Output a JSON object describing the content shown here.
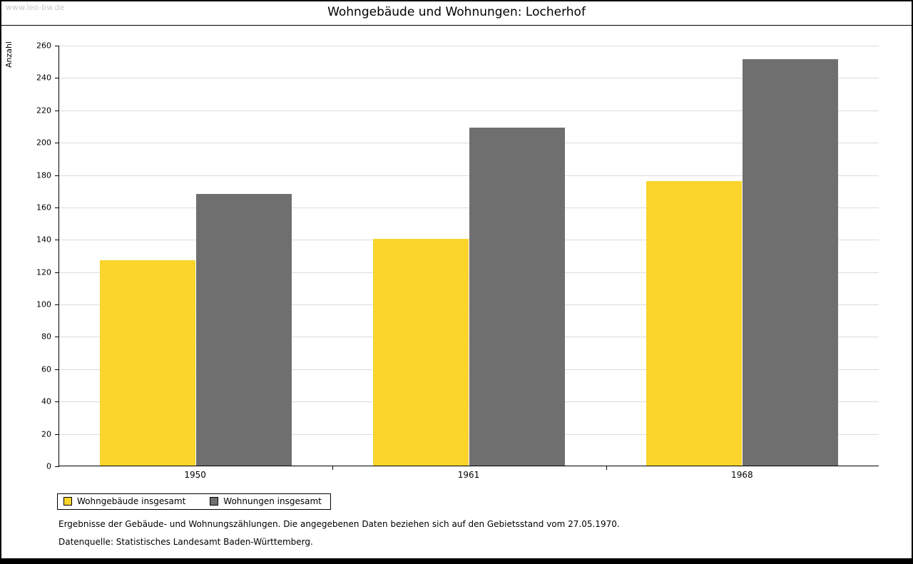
{
  "watermark": "www.leo-bw.de",
  "title": "Wohngebäude und Wohnungen: Locherhof",
  "footer": {
    "line1": "Ergebnisse der Gebäude- und Wohnungszählungen. Die angegebenen Daten beziehen sich auf den Gebietsstand vom 27.05.1970.",
    "line2": "Datenquelle: Statistisches Landesamt Baden-Württemberg."
  },
  "chart_data": {
    "type": "bar",
    "title": "Wohngebäude und Wohnungen: Locherhof",
    "xlabel": "",
    "ylabel": "Anzahl",
    "categories": [
      "1950",
      "1961",
      "1968"
    ],
    "series": [
      {
        "name": "Wohngebäude insgesamt",
        "color": "#FBD42C",
        "values": [
          127,
          140,
          176
        ]
      },
      {
        "name": "Wohnungen insgesamt",
        "color": "#6F6F6F",
        "values": [
          168,
          209,
          251
        ]
      }
    ],
    "ylim": [
      0,
      260
    ],
    "ytick_step": 20,
    "grid": true,
    "legend_position": "bottom-left"
  }
}
